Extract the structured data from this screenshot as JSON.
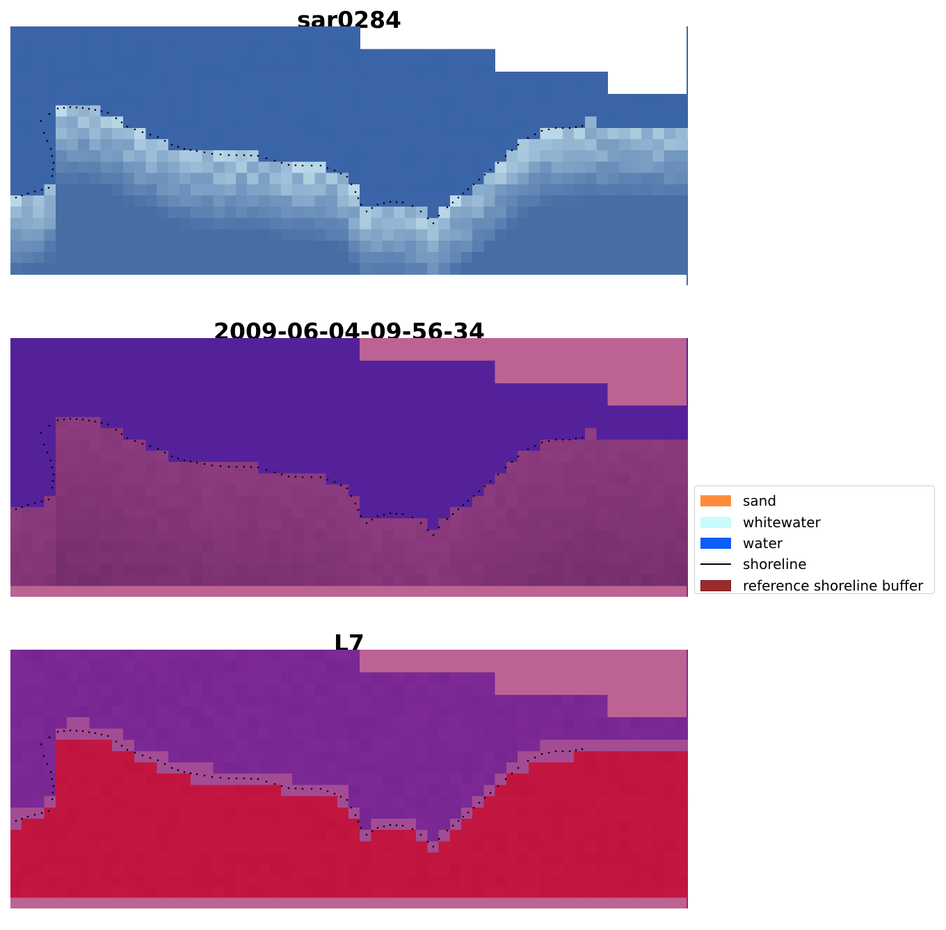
{
  "panels": [
    {
      "title": "sar0284",
      "kind": "rgb"
    },
    {
      "title": "2009-06-04-09-56-34",
      "kind": "classified"
    },
    {
      "title": "L7",
      "kind": "index"
    }
  ],
  "legend": {
    "items": [
      {
        "label": "sand",
        "color": "#ff8c3a",
        "type": "patch"
      },
      {
        "label": "whitewater",
        "color": "#c8fbfb",
        "type": "patch"
      },
      {
        "label": "water",
        "color": "#0d5ef5",
        "type": "patch"
      },
      {
        "label": "shoreline",
        "color": "#000000",
        "type": "line"
      },
      {
        "label": "reference shoreline buffer",
        "color": "#9c2a2a",
        "type": "patch"
      }
    ]
  },
  "colors": {
    "rgb_water": "#3a64a8",
    "rgb_whitewater": "#c6e3ee",
    "classified_water": "#54219a",
    "classified_land": "#8e3d80",
    "classified_buffer": "#bd6393",
    "index_water": "#7d2a96",
    "index_land": "#c0143f",
    "index_buffer": "#bd6393",
    "shoreline": "#000000"
  }
}
